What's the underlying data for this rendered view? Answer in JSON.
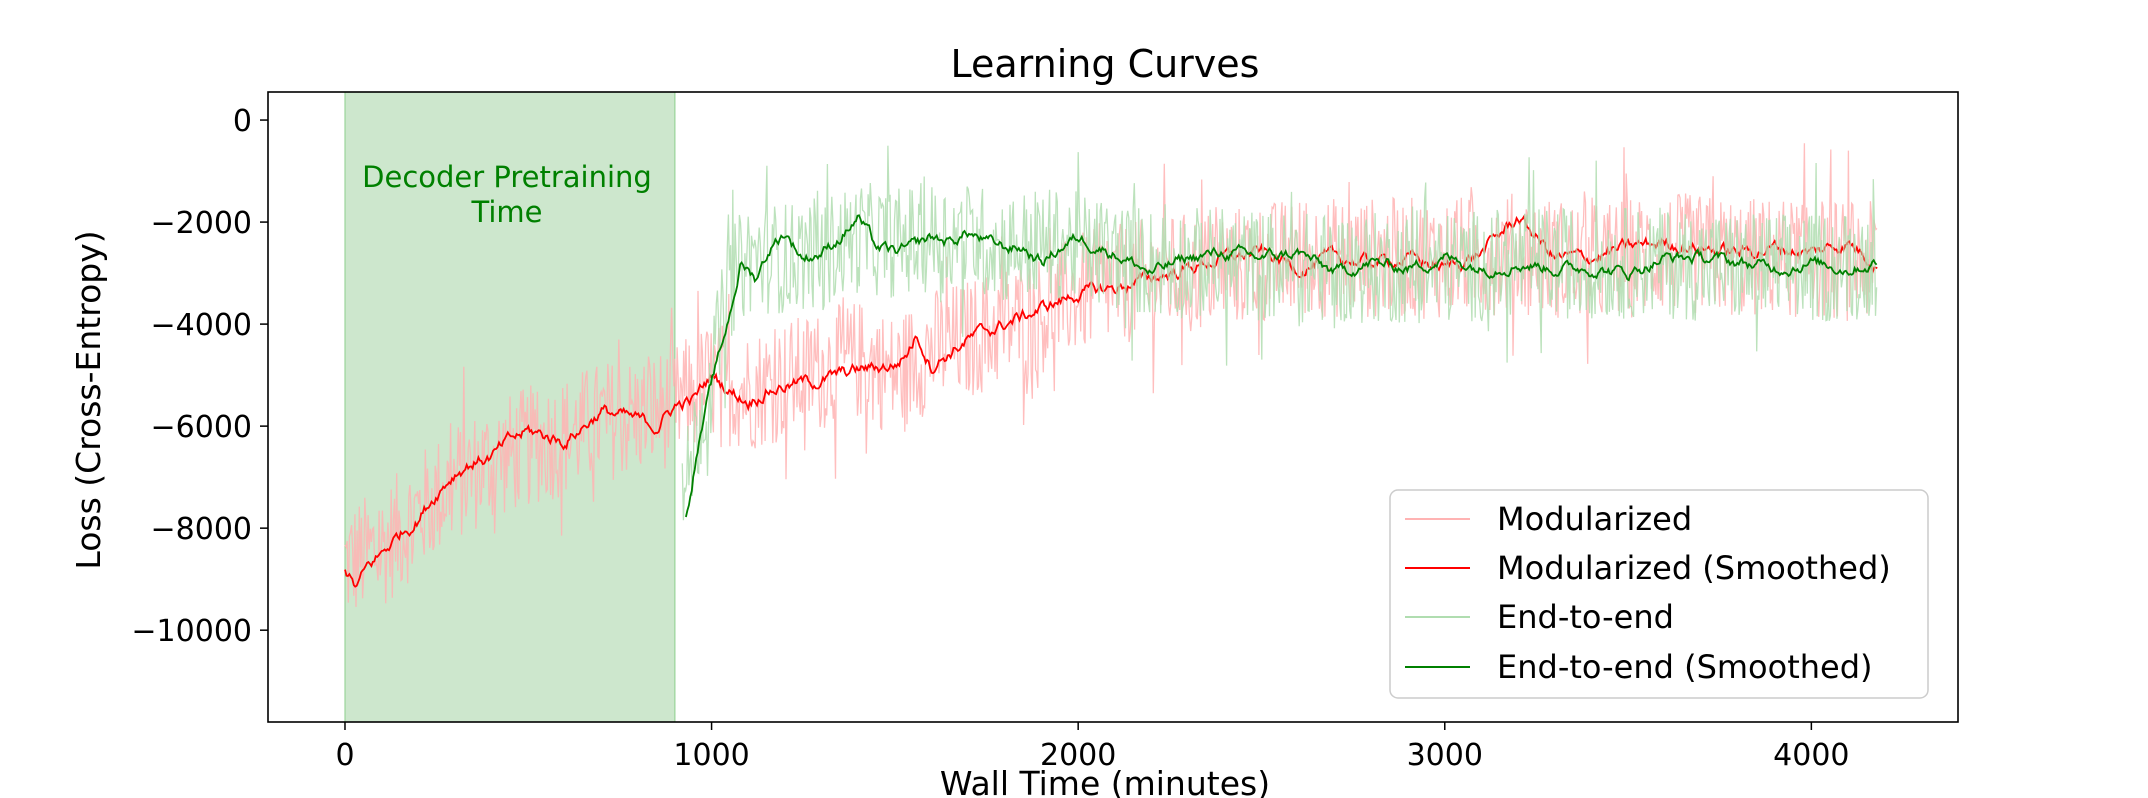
{
  "chart_data": {
    "type": "line",
    "title": "Learning Curves",
    "xlabel": "Wall Time (minutes)",
    "ylabel": "Loss (Cross-Entropy)",
    "xlim": [
      -210,
      4400
    ],
    "ylim": [
      -11800,
      550
    ],
    "x_ticks": [
      0,
      1000,
      2000,
      3000,
      4000
    ],
    "x_tick_labels": [
      "0",
      "1000",
      "2000",
      "3000",
      "4000"
    ],
    "y_ticks": [
      0,
      -2000,
      -4000,
      -6000,
      -8000,
      -10000
    ],
    "y_tick_labels": [
      "0",
      "−2000",
      "−4000",
      "−6000",
      "−8000",
      "−10000"
    ],
    "grid": false,
    "legend_position": "bottom-right",
    "annotation": {
      "lines": [
        "Decoder Pretraining",
        "Time"
      ],
      "x_range": [
        0,
        900
      ],
      "color": "#008000",
      "shade_color": "#cde7cd"
    },
    "series": [
      {
        "name": "Modularized",
        "color": "#ffb3b3",
        "kind": "raw",
        "x": [
          0,
          100,
          200,
          300,
          400,
          500,
          600,
          700,
          800,
          900,
          1000,
          1100,
          1200,
          1300,
          1400,
          1500,
          1600,
          1700,
          1800,
          1900,
          2000,
          2200,
          2400,
          2600,
          2800,
          3000,
          3200,
          3400,
          3600,
          3800,
          4000,
          4180
        ],
        "y": [
          -8700,
          -8400,
          -7700,
          -7100,
          -6700,
          -6400,
          -6200,
          -5900,
          -5800,
          -5600,
          -5100,
          -5300,
          -5100,
          -4900,
          -4700,
          -5000,
          -4500,
          -4300,
          -4000,
          -3800,
          -3400,
          -3100,
          -2900,
          -2700,
          -2700,
          -2700,
          -2600,
          -2800,
          -2600,
          -2700,
          -2700,
          -2800
        ],
        "noise": 1200
      },
      {
        "name": "Modularized (Smoothed)",
        "color": "#ff0000",
        "kind": "smoothed",
        "x": [
          0,
          30,
          60,
          100,
          150,
          200,
          250,
          300,
          350,
          400,
          450,
          500,
          550,
          600,
          650,
          700,
          750,
          800,
          850,
          900,
          950,
          1000,
          1050,
          1100,
          1150,
          1200,
          1300,
          1400,
          1500,
          1530,
          1560,
          1600,
          1700,
          1800,
          1900,
          2000,
          2100,
          2200,
          2300,
          2400,
          2500,
          2600,
          2700,
          2800,
          2900,
          3000,
          3100,
          3200,
          3300,
          3400,
          3500,
          3600,
          3700,
          3800,
          3900,
          4000,
          4100,
          4180
        ],
        "y": [
          -8800,
          -9200,
          -8800,
          -8500,
          -8100,
          -7800,
          -7300,
          -6900,
          -6700,
          -6600,
          -6300,
          -6100,
          -6200,
          -6300,
          -6000,
          -5700,
          -5800,
          -5900,
          -6000,
          -5600,
          -5500,
          -5000,
          -5300,
          -5500,
          -5300,
          -5200,
          -5100,
          -4900,
          -4800,
          -4600,
          -4200,
          -4800,
          -4300,
          -4000,
          -3700,
          -3400,
          -3300,
          -3100,
          -2900,
          -2700,
          -2600,
          -2900,
          -2700,
          -2800,
          -2700,
          -2900,
          -2600,
          -1900,
          -2700,
          -2700,
          -2500,
          -2400,
          -2500,
          -2600,
          -2500,
          -2600,
          -2400,
          -2800
        ],
        "noise": 180
      },
      {
        "name": "End-to-end",
        "color": "#b0ddb0",
        "kind": "raw",
        "x": [
          920,
          960,
          1000,
          1050,
          1100,
          1200,
          1300,
          1400,
          1500,
          1600,
          1700,
          1800,
          1900,
          2000,
          2200,
          2400,
          2600,
          2800,
          3000,
          3200,
          3400,
          3600,
          3800,
          4000,
          4180
        ],
        "y": [
          -7600,
          -6100,
          -5000,
          -3200,
          -2700,
          -2700,
          -2600,
          -2300,
          -2400,
          -2300,
          -2300,
          -2500,
          -2400,
          -2500,
          -2800,
          -2800,
          -2900,
          -2900,
          -2900,
          -2800,
          -2800,
          -2800,
          -2900,
          -2900,
          -2800
        ],
        "noise": 1100
      },
      {
        "name": "End-to-end (Smoothed)",
        "color": "#008000",
        "kind": "smoothed",
        "x": [
          930,
          960,
          1000,
          1040,
          1080,
          1120,
          1160,
          1200,
          1250,
          1300,
          1350,
          1400,
          1450,
          1500,
          1550,
          1600,
          1650,
          1700,
          1750,
          1800,
          1850,
          1900,
          1950,
          2000,
          2100,
          2200,
          2300,
          2400,
          2500,
          2600,
          2700,
          2800,
          2900,
          3000,
          3100,
          3200,
          3300,
          3400,
          3500,
          3600,
          3700,
          3800,
          3900,
          4000,
          4100,
          4180
        ],
        "y": [
          -7800,
          -6500,
          -5200,
          -4100,
          -2800,
          -3100,
          -2500,
          -2200,
          -2700,
          -2600,
          -2300,
          -1900,
          -2500,
          -2600,
          -2500,
          -2300,
          -2400,
          -2200,
          -2400,
          -2500,
          -2500,
          -2800,
          -2500,
          -2300,
          -2600,
          -3000,
          -2700,
          -2600,
          -2700,
          -2600,
          -3000,
          -2800,
          -2900,
          -2700,
          -2900,
          -2800,
          -2900,
          -2900,
          -3000,
          -2700,
          -2700,
          -2800,
          -2900,
          -2800,
          -2900,
          -2800
        ],
        "noise": 160
      }
    ]
  }
}
